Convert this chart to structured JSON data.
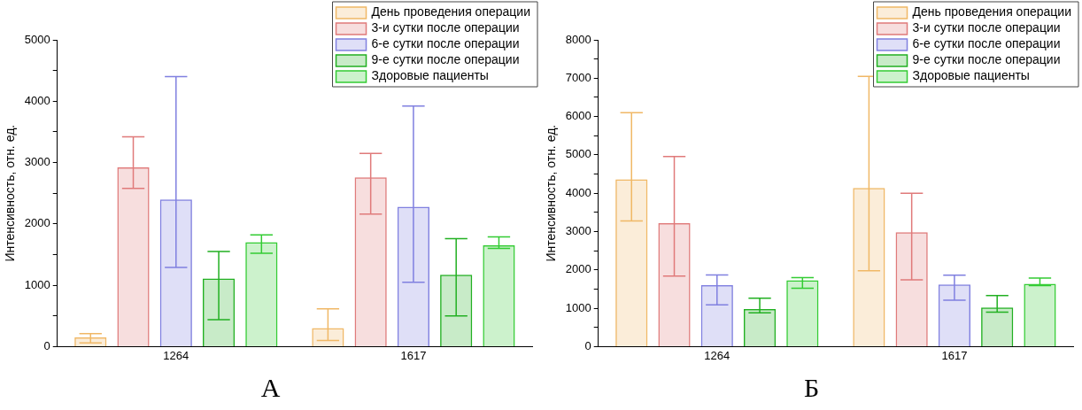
{
  "chart_data": [
    {
      "type": "bar",
      "title": "А",
      "ylabel": "Интенсивность, отн. ед.",
      "categories": [
        "1264",
        "1617"
      ],
      "ylim": [
        0,
        5000
      ],
      "yticks": [
        0,
        {
          "value": 500,
          "label": null
        },
        1000,
        {
          "value": 1500,
          "label": null
        },
        2000,
        {
          "value": 2500,
          "label": null
        },
        3000,
        {
          "value": 3500,
          "label": null
        },
        4000,
        {
          "value": 4500,
          "label": null
        },
        5000
      ],
      "grid": false,
      "legend": "top right",
      "series": [
        {
          "name": "День проведения операции",
          "color": "#f0b866",
          "values": [
            150,
            300
          ],
          "errors": [
            [
              60,
              210
            ],
            [
              100,
              615
            ]
          ]
        },
        {
          "name": "3-и сутки после операции",
          "color": "#e07a7a",
          "values": [
            2920,
            2760
          ],
          "errors": [
            [
              2580,
              3420
            ],
            [
              2160,
              3150
            ]
          ]
        },
        {
          "name": "6-е сутки после операции",
          "color": "#8080e0",
          "values": [
            2400,
            2280
          ],
          "errors": [
            [
              1290,
              4400
            ],
            [
              1050,
              3920
            ]
          ]
        },
        {
          "name": "9-е сутки после операции",
          "color": "#22b022",
          "values": [
            1110,
            1170
          ],
          "errors": [
            [
              440,
              1550
            ],
            [
              500,
              1760
            ]
          ]
        },
        {
          "name": "Здоровые пациенты",
          "color": "#33cc33",
          "values": [
            1700,
            1650
          ],
          "errors": [
            [
              1520,
              1820
            ],
            [
              1600,
              1790
            ]
          ]
        }
      ]
    },
    {
      "type": "bar",
      "title": "Б",
      "ylabel": "Интенсивность, отн. ед.",
      "categories": [
        "1264",
        "1617"
      ],
      "ylim": [
        0,
        8000
      ],
      "yticks": [
        0,
        {
          "value": 500,
          "label": null
        },
        1000,
        {
          "value": 1500,
          "label": null
        },
        2000,
        {
          "value": 2500,
          "label": null
        },
        3000,
        {
          "value": 3500,
          "label": null
        },
        4000,
        {
          "value": 4500,
          "label": null
        },
        5000,
        {
          "value": 5500,
          "label": null
        },
        6000,
        {
          "value": 6500,
          "label": null
        },
        7000,
        {
          "value": 7500,
          "label": null
        },
        8000
      ],
      "grid": false,
      "legend": "top right",
      "series": [
        {
          "name": "День проведения операции",
          "color": "#f0b866",
          "values": [
            4360,
            4140
          ],
          "errors": [
            [
              3280,
              6100
            ],
            [
              1980,
              7050
            ]
          ]
        },
        {
          "name": "3-и сутки после операции",
          "color": "#e07a7a",
          "values": [
            3220,
            2980
          ],
          "errors": [
            [
              1840,
              4960
            ],
            [
              1740,
              4000
            ]
          ]
        },
        {
          "name": "6-е сутки после операции",
          "color": "#8080e0",
          "values": [
            1600,
            1620
          ],
          "errors": [
            [
              1090,
              1870
            ],
            [
              1210,
              1860
            ]
          ]
        },
        {
          "name": "9-е сутки после операции",
          "color": "#22b022",
          "values": [
            980,
            1020
          ],
          "errors": [
            [
              880,
              1260
            ],
            [
              900,
              1330
            ]
          ]
        },
        {
          "name": "Здоровые пациенты",
          "color": "#33cc33",
          "values": [
            1730,
            1640
          ],
          "errors": [
            [
              1520,
              1800
            ],
            [
              1590,
              1790
            ]
          ]
        }
      ]
    }
  ]
}
